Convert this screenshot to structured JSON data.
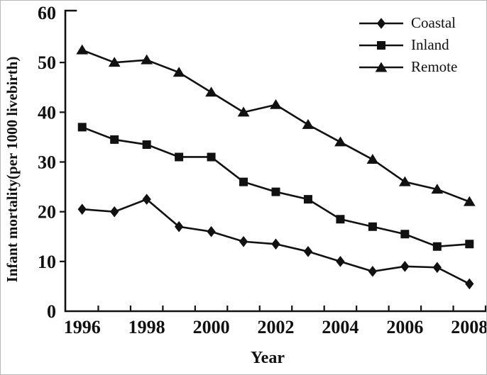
{
  "figure": {
    "background": "#ffffff",
    "line_color": "#111111"
  },
  "chart_data": {
    "type": "line",
    "title": "",
    "xlabel": "Year",
    "ylabel": "Infant mortality(per 1000 livebirth)",
    "x": [
      1996,
      1997,
      1998,
      1999,
      2000,
      2001,
      2002,
      2003,
      2004,
      2005,
      2006,
      2007,
      2008
    ],
    "x_tick_labels": [
      "1996",
      "1998",
      "2000",
      "2002",
      "2004",
      "2006",
      "2008"
    ],
    "y_ticks": [
      0,
      10,
      20,
      30,
      40,
      50,
      60
    ],
    "ylim": [
      0,
      60
    ],
    "grid": false,
    "legend_position": "top-right",
    "series": [
      {
        "name": "Coastal",
        "marker": "diamond",
        "values": [
          20.5,
          20,
          22.5,
          17,
          16,
          14,
          13.5,
          12,
          10,
          8,
          9,
          8.8,
          5.5
        ]
      },
      {
        "name": "Inland",
        "marker": "square",
        "values": [
          37,
          34.5,
          33.5,
          31,
          31,
          26,
          24,
          22.5,
          18.5,
          17,
          15.5,
          13,
          13.5
        ]
      },
      {
        "name": "Remote",
        "marker": "triangle",
        "values": [
          52.5,
          50,
          50.5,
          48,
          44,
          40,
          41.5,
          37.5,
          34,
          30.5,
          26,
          24.5,
          22
        ]
      }
    ]
  }
}
